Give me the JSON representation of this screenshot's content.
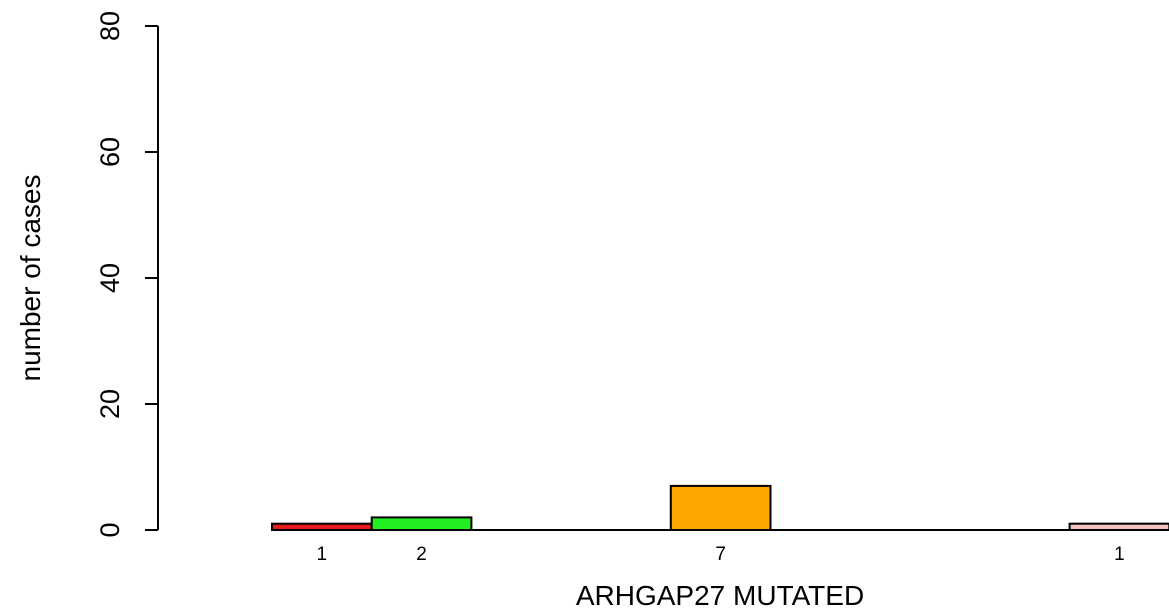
{
  "chart_data": {
    "type": "bar",
    "xlabel": "ARHGAP27 MUTATED",
    "ylabel": "number of cases",
    "ylim": [
      0,
      80
    ],
    "yticks": [
      0,
      20,
      40,
      60,
      80
    ],
    "grid": false,
    "categories": [
      "",
      "",
      "",
      "",
      "",
      "",
      "",
      "",
      ""
    ],
    "values": [
      1,
      2,
      0,
      0,
      7,
      0,
      0,
      0,
      1
    ],
    "bar_labels": [
      "1",
      "2",
      "",
      "",
      "7",
      "",
      "",
      "",
      "1"
    ],
    "colors": [
      "#e41a1c",
      "#22ee22",
      "#ffffff",
      "#ffffff",
      "#ffa500",
      "#ffffff",
      "#ffffff",
      "#ffffff",
      "#f4c2c2"
    ]
  }
}
